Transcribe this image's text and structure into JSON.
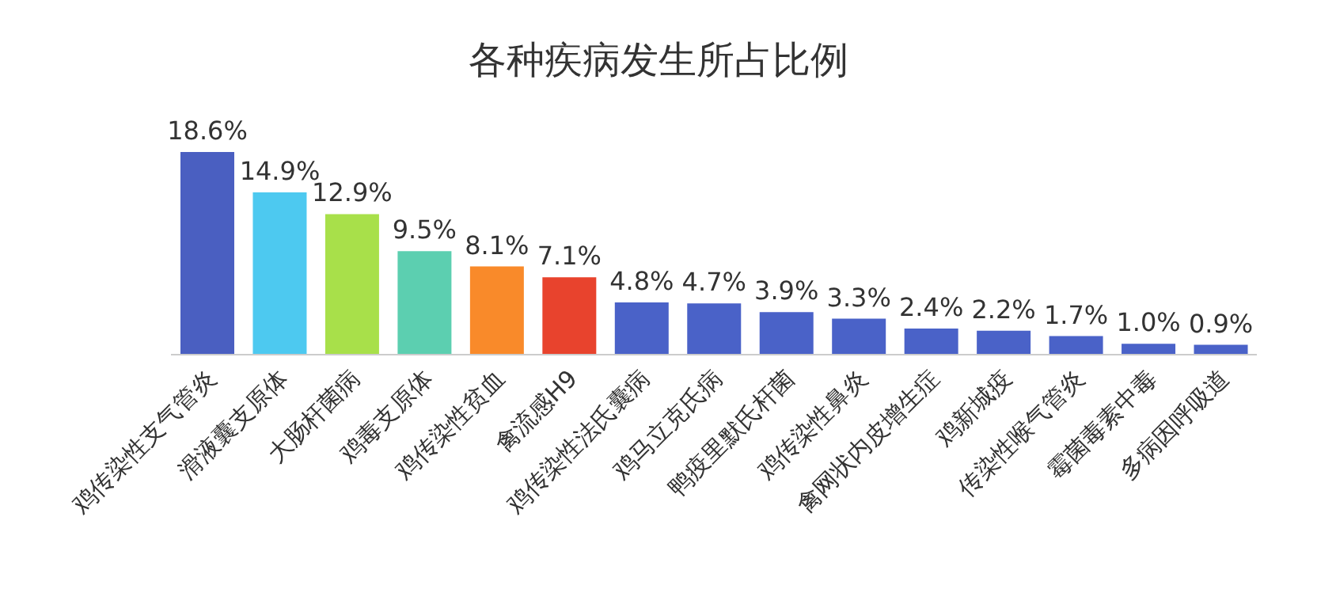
{
  "chart_data": {
    "type": "bar",
    "title": "各种疾病发生所占比例",
    "categories": [
      "鸡传染性支气管炎",
      "滑液囊支原体",
      "大肠杆菌病",
      "鸡毒支原体",
      "鸡传染性贫血",
      "禽流感H9",
      "鸡传染性法氏囊病",
      "鸡马立克氏病",
      "鸭疫里默氏杆菌",
      "鸡传染性鼻炎",
      "禽网状内皮增生症",
      "鸡新城疫",
      "传染性喉气管炎",
      "霉菌毒素中毒",
      "多病因呼吸道"
    ],
    "values": [
      18.6,
      14.9,
      12.9,
      9.5,
      8.1,
      7.1,
      4.8,
      4.7,
      3.9,
      3.3,
      2.4,
      2.2,
      1.7,
      1.0,
      0.9
    ],
    "colors": [
      "#4a5fc1",
      "#4dc9f0",
      "#a8e04a",
      "#5ccfb0",
      "#f98a2a",
      "#e8432d",
      "#4a62c8",
      "#4a62c8",
      "#4a62c8",
      "#4a62c8",
      "#4a62c8",
      "#4a62c8",
      "#4a62c8",
      "#4a62c8",
      "#4a62c8"
    ],
    "value_labels": [
      "18.6%",
      "14.9%",
      "12.9%",
      "9.5%",
      "8.1%",
      "7.1%",
      "4.8%",
      "4.7%",
      "3.9%",
      "3.3%",
      "2.4%",
      "2.2%",
      "1.7%",
      "1.0%",
      "0.9%"
    ],
    "grid": false,
    "legend": false
  }
}
